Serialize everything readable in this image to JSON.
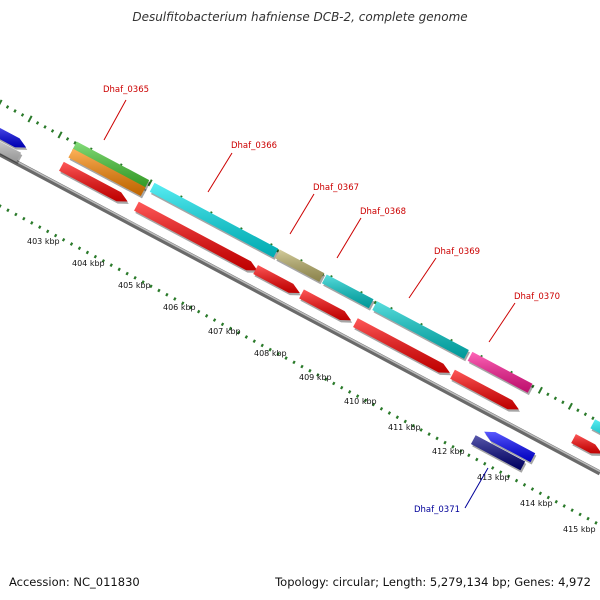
{
  "title": "Desulfitobacterium hafniense DCB-2, complete genome",
  "footer": {
    "accession": "Accession: NC_011830",
    "summary": "Topology: circular; Length: 5,279,134 bp; Genes: 4,972"
  },
  "ticks": [
    "403 kbp",
    "404 kbp",
    "405 kbp",
    "406 kbp",
    "407 kbp",
    "408 kbp",
    "409 kbp",
    "410 kbp",
    "411 kbp",
    "412 kbp",
    "413 kbp",
    "414 kbp",
    "415 kbp"
  ],
  "gene_labels": [
    {
      "text": "Dhaf_0365",
      "color": "#cc0000"
    },
    {
      "text": "Dhaf_0366",
      "color": "#cc0000"
    },
    {
      "text": "Dhaf_0367",
      "color": "#cc0000"
    },
    {
      "text": "Dhaf_0368",
      "color": "#cc0000"
    },
    {
      "text": "Dhaf_0369",
      "color": "#cc0000"
    },
    {
      "text": "Dhaf_0370",
      "color": "#cc0000"
    },
    {
      "text": "Dhaf_0371",
      "color": "#000099"
    }
  ],
  "colors": {
    "backbone": "#888888",
    "cds": "#ff0000",
    "tick": "#228822"
  }
}
